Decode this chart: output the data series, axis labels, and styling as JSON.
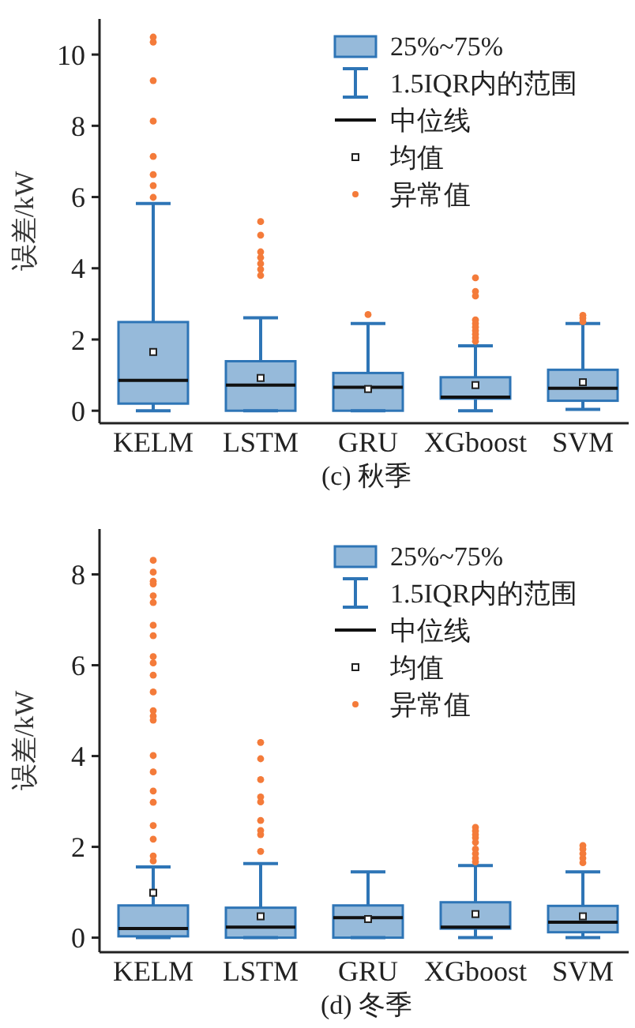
{
  "chart_data": [
    {
      "type": "box",
      "title": "(c) 秋季",
      "ylabel": "误差/kW",
      "categories": [
        "KELM",
        "LSTM",
        "GRU",
        "XGboost",
        "SVM"
      ],
      "ylim": [
        -0.35,
        11
      ],
      "yticks": [
        0,
        2,
        4,
        6,
        8,
        10
      ],
      "annotations": [
        "25%~75%",
        "1.5IQR内的范围",
        "中位线",
        "均值",
        "异常值"
      ],
      "series": [
        {
          "color": "#2e75b6",
          "boxes": [
            {
              "low": 0,
              "q1": 0.2,
              "median": 0.85,
              "q3": 2.49,
              "high": 5.82,
              "mean": 1.65,
              "outliers": [
                10.49,
                10.35,
                9.27,
                8.13,
                7.14,
                6.63,
                6.32,
                5.99
              ]
            },
            {
              "low": 0,
              "q1": 0,
              "median": 0.72,
              "q3": 1.39,
              "high": 2.61,
              "mean": 0.92,
              "outliers": [
                5.31,
                4.93,
                4.46,
                4.3,
                4.13,
                3.97,
                3.8
              ]
            },
            {
              "low": 0,
              "q1": 0,
              "median": 0.66,
              "q3": 1.06,
              "high": 2.45,
              "mean": 0.61,
              "outliers": [
                2.7
              ]
            },
            {
              "low": 0,
              "q1": 0.34,
              "median": 0.38,
              "q3": 0.94,
              "high": 1.82,
              "mean": 0.72,
              "outliers": [
                3.73,
                3.35,
                3.22,
                2.55,
                2.45,
                2.35,
                2.25,
                2.15,
                2.05,
                1.95
              ]
            },
            {
              "low": 0.04,
              "q1": 0.28,
              "median": 0.63,
              "q3": 1.15,
              "high": 2.45,
              "mean": 0.8,
              "outliers": [
                2.68,
                2.6,
                2.5
              ]
            }
          ]
        }
      ]
    },
    {
      "type": "box",
      "title": "(d) 冬季",
      "ylabel": "误差/kW",
      "categories": [
        "KELM",
        "LSTM",
        "GRU",
        "XGboost",
        "SVM"
      ],
      "ylim": [
        -0.32,
        9
      ],
      "yticks": [
        0,
        2,
        4,
        6,
        8
      ],
      "annotations": [
        "25%~75%",
        "1.5IQR内的范围",
        "中位线",
        "均值",
        "异常值"
      ],
      "series": [
        {
          "color": "#2e75b6",
          "boxes": [
            {
              "low": 0,
              "q1": 0.03,
              "median": 0.2,
              "q3": 0.71,
              "high": 1.56,
              "mean": 0.99,
              "outliers": [
                8.31,
                8.05,
                7.85,
                7.79,
                7.53,
                7.38,
                6.88,
                6.65,
                6.19,
                6.05,
                5.78,
                5.41,
                5.0,
                4.88,
                4.79,
                4.01,
                3.65,
                3.23,
                2.98,
                2.47,
                2.17,
                1.8,
                1.69
              ]
            },
            {
              "low": 0,
              "q1": 0,
              "median": 0.23,
              "q3": 0.66,
              "high": 1.63,
              "mean": 0.47,
              "outliers": [
                4.3,
                3.94,
                3.48,
                3.1,
                2.99,
                2.58,
                2.36,
                2.27,
                1.9
              ]
            },
            {
              "low": 0,
              "q1": 0,
              "median": 0.44,
              "q3": 0.71,
              "high": 1.45,
              "mean": 0.41
            },
            {
              "low": 0,
              "q1": 0.2,
              "median": 0.23,
              "q3": 0.78,
              "high": 1.59,
              "mean": 0.52,
              "outliers": [
                2.43,
                2.35,
                2.27,
                2.2,
                2.1,
                1.95,
                1.85,
                1.75,
                1.67
              ]
            },
            {
              "low": 0,
              "q1": 0.12,
              "median": 0.34,
              "q3": 0.7,
              "high": 1.45,
              "mean": 0.47,
              "outliers": [
                2.03,
                1.95,
                1.85,
                1.75,
                1.65
              ]
            }
          ]
        }
      ]
    }
  ]
}
